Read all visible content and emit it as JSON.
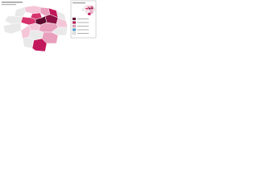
{
  "map": {
    "regions": [
      {
        "color": "#f4c6d8"
      },
      {
        "color": "#e9e9e9"
      },
      {
        "color": "#e8a0bc"
      },
      {
        "color": "#c2185b"
      },
      {
        "color": "#e9e9e9"
      },
      {
        "color": "#d6336c"
      },
      {
        "color": "#5c0a2e"
      },
      {
        "color": "#8e1245"
      },
      {
        "color": "#f4c6d8"
      },
      {
        "color": "#e9e9e9"
      },
      {
        "color": "#d6336c"
      },
      {
        "color": "#f4c6d8"
      },
      {
        "color": "#e8a0bc"
      },
      {
        "color": "#e9e9e9"
      },
      {
        "color": "#e9e9e9"
      },
      {
        "color": "#f4c6d8"
      },
      {
        "color": "#e9e9e9"
      },
      {
        "color": "#e8a0bc"
      },
      {
        "color": "#e9e9e9"
      },
      {
        "color": "#c2185b"
      }
    ],
    "legend": {
      "swatches": [
        {
          "color": "#5c0a2e"
        },
        {
          "color": "#c2185b"
        },
        {
          "color": "#e8a0bc"
        },
        {
          "color": "#4da6d9"
        },
        {
          "color": "#e9e9e9"
        }
      ]
    }
  }
}
